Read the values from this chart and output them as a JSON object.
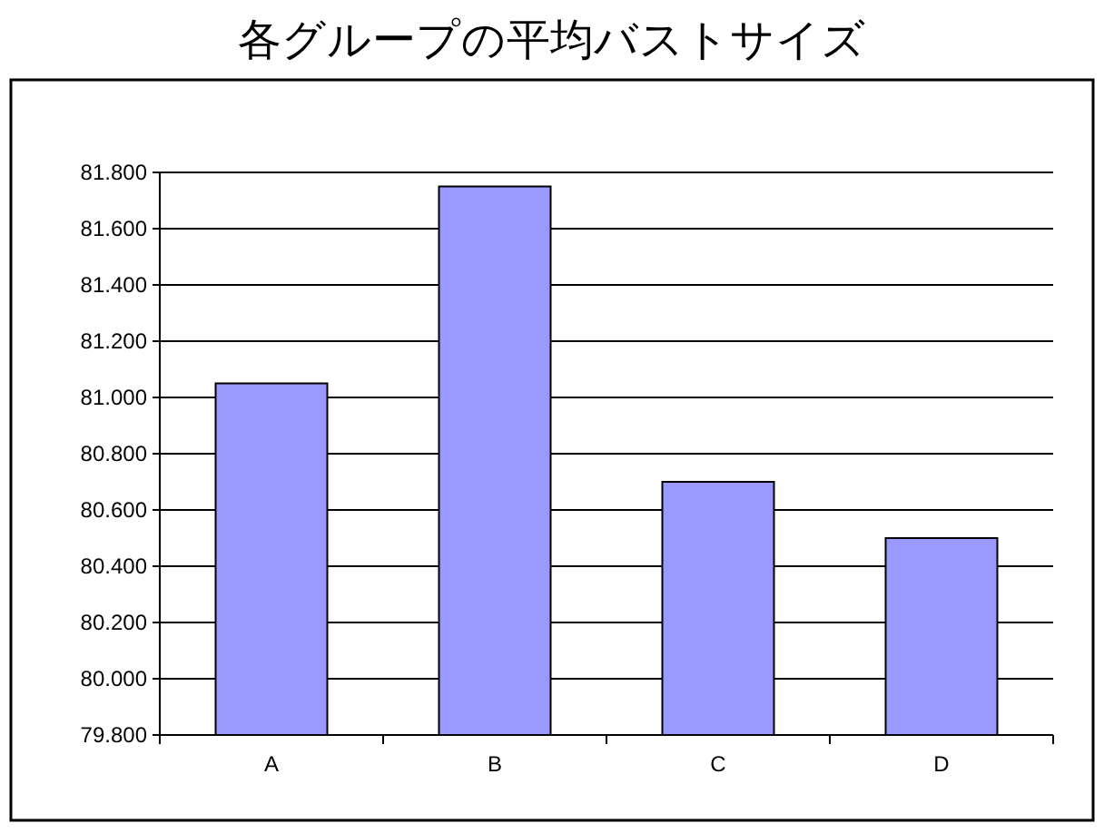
{
  "chart_data": {
    "type": "bar",
    "title": "各グループの平均バストサイズ",
    "categories": [
      "A",
      "B",
      "C",
      "D"
    ],
    "values": [
      81.05,
      81.75,
      80.7,
      80.5
    ],
    "color": "#9999ff",
    "ylim": [
      79.8,
      81.8
    ],
    "yticks": [
      {
        "value": 79.8,
        "label": "79.800"
      },
      {
        "value": 80.0,
        "label": "80.000"
      },
      {
        "value": 80.2,
        "label": "80.200"
      },
      {
        "value": 80.4,
        "label": "80.400"
      },
      {
        "value": 80.6,
        "label": "80.600"
      },
      {
        "value": 80.8,
        "label": "80.800"
      },
      {
        "value": 81.0,
        "label": "81.000"
      },
      {
        "value": 81.2,
        "label": "81.200"
      },
      {
        "value": 81.4,
        "label": "81.400"
      },
      {
        "value": 81.6,
        "label": "81.600"
      },
      {
        "value": 81.8,
        "label": "81.800"
      }
    ],
    "grid": "y"
  }
}
